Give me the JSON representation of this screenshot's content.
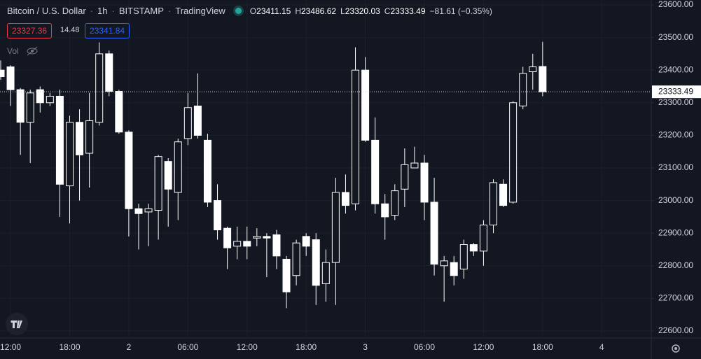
{
  "chart_data": {
    "type": "candlestick",
    "title": "Bitcoin / U.S. Dollar",
    "interval": "1h",
    "exchange": "BITSTAMP",
    "source": "TradingView",
    "ohlc_keys": [
      "O",
      "H",
      "L",
      "C"
    ],
    "change_text": "−81.61 (−0.35%)",
    "bid": 23327.36,
    "spread": 14.48,
    "ask": 23341.84,
    "volume_label": "Vol",
    "categories": [
      null,
      "12:00",
      null,
      null,
      null,
      null,
      null,
      "18:00",
      null,
      null,
      null,
      null,
      null,
      "2",
      null,
      null,
      null,
      null,
      null,
      "06:00",
      null,
      null,
      null,
      null,
      null,
      "12:00",
      null,
      null,
      null,
      null,
      null,
      "18:00",
      null,
      null,
      null,
      null,
      null,
      "3",
      null,
      null,
      null,
      null,
      null,
      "06:00",
      null,
      null,
      null,
      null,
      null,
      "12:00",
      null,
      null,
      null,
      null,
      null,
      "18:00",
      null,
      null,
      null,
      null,
      null,
      "4"
    ],
    "open": [
      23400,
      23410,
      23340,
      23240,
      23340,
      23300,
      23320,
      23045,
      23240,
      23145,
      23240,
      23450,
      23335,
      23210,
      22975,
      22965,
      22970,
      23120,
      23025,
      23190,
      23290,
      23185,
      23000,
      22915,
      22860,
      22875,
      22885,
      22890,
      22895,
      22820,
      22770,
      22890,
      22880,
      22745,
      22810,
      23025,
      22990,
      23400,
      23185,
      22990,
      22955,
      23035,
      23100,
      23115,
      22995,
      22800,
      22810,
      22790,
      22865,
      22845,
      22925,
      23050,
      22995,
      23290,
      23395,
      23411.15,
      null,
      null,
      null,
      null,
      null,
      null
    ],
    "high": [
      23430,
      23415,
      23345,
      23340,
      23350,
      23330,
      23340,
      23260,
      23280,
      23330,
      23485,
      23460,
      23340,
      23215,
      22990,
      22990,
      23140,
      23130,
      23190,
      23330,
      23390,
      23205,
      23050,
      22920,
      22920,
      22920,
      22915,
      22900,
      22910,
      22830,
      22880,
      22900,
      22900,
      22850,
      23070,
      23080,
      23470,
      23440,
      23255,
      23020,
      23050,
      23160,
      23165,
      23140,
      23070,
      22830,
      22830,
      22880,
      22870,
      22940,
      23065,
      23065,
      23305,
      23410,
      23450,
      23486.62,
      null,
      null,
      null,
      null,
      null,
      null
    ],
    "low": [
      23370,
      23290,
      23140,
      23115,
      23270,
      23290,
      22950,
      22930,
      23000,
      23040,
      23230,
      23320,
      23205,
      22890,
      22850,
      22860,
      22880,
      22920,
      22940,
      23170,
      23190,
      22980,
      22880,
      22790,
      22820,
      22820,
      22860,
      22765,
      22790,
      22670,
      22740,
      22830,
      22680,
      22690,
      22680,
      22960,
      22970,
      23180,
      22960,
      22880,
      22940,
      22980,
      23100,
      22940,
      22770,
      22690,
      22740,
      22760,
      22830,
      22800,
      22900,
      22980,
      22990,
      23280,
      23340,
      23320.03,
      null,
      null,
      null,
      null,
      null,
      null
    ],
    "close": [
      23380,
      23340,
      23240,
      23330,
      23300,
      23320,
      23050,
      23240,
      23140,
      23245,
      23450,
      23335,
      23210,
      22975,
      22960,
      22975,
      23135,
      23035,
      23180,
      23285,
      23200,
      22995,
      22910,
      22855,
      22875,
      22860,
      22890,
      22885,
      22830,
      22720,
      22870,
      22860,
      22740,
      22810,
      23025,
      22985,
      23400,
      23185,
      22990,
      22950,
      23030,
      23110,
      23115,
      22995,
      22805,
      22815,
      22770,
      22865,
      22845,
      22925,
      23055,
      22985,
      23300,
      23390,
      23410,
      23333.49,
      null,
      null,
      null,
      null,
      null,
      null
    ],
    "up_color": "#131722",
    "down_color": "#ffffff",
    "ylim": [
      22578.5,
      23615
    ],
    "yticks": [
      {
        "value": 22600,
        "label": "22600.00"
      },
      {
        "value": 22700,
        "label": "22700.00"
      },
      {
        "value": 22800,
        "label": "22800.00"
      },
      {
        "value": 22900,
        "label": "22900.00"
      },
      {
        "value": 23000,
        "label": "23000.00"
      },
      {
        "value": 23100,
        "label": "23100.00"
      },
      {
        "value": 23200,
        "label": "23200.00"
      },
      {
        "value": 23300,
        "label": "23300.00"
      },
      {
        "value": 23400,
        "label": "23400.00"
      },
      {
        "value": 23500,
        "label": "23500.00"
      },
      {
        "value": 23600,
        "label": "23600.00"
      }
    ],
    "grid": true
  }
}
